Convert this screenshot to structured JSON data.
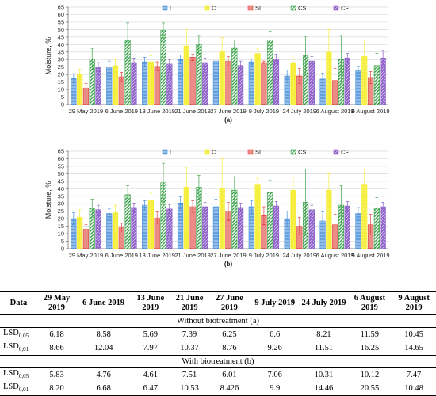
{
  "colors": {
    "L": "#4a90d9",
    "C": "#f5ee3a",
    "SL": "#e0453c",
    "CS": "#3aa24a",
    "CF": "#8a5ac8"
  },
  "chart_data": [
    {
      "type": "bar",
      "panel_label": "(a)",
      "ylabel": "Moisture, %",
      "ylim": [
        0,
        65
      ],
      "yticks": [
        0,
        5,
        10,
        15,
        20,
        25,
        30,
        35,
        40,
        45,
        50,
        55,
        60,
        65
      ],
      "grid": true,
      "legend_position": "top",
      "categories": [
        "29 May 2019",
        "6 June 2019",
        "13 June 2019",
        "21 June 2019",
        "27 June 2019",
        "9 July 2019",
        "24 July 2019",
        "6 August 2019",
        "9 August 2019"
      ],
      "series": [
        {
          "name": "L",
          "values": [
            17.5,
            25,
            28.5,
            30,
            29,
            28.5,
            19,
            17,
            22.5
          ],
          "errors": [
            3,
            4,
            3,
            3,
            4,
            2,
            4,
            4,
            3
          ]
        },
        {
          "name": "C",
          "values": [
            20.5,
            26,
            28.5,
            39,
            35.5,
            34,
            28,
            35,
            32
          ],
          "errors": [
            3,
            4,
            4,
            11,
            9,
            3,
            5,
            15,
            11
          ]
        },
        {
          "name": "SL",
          "values": [
            11,
            18.5,
            25.5,
            31.5,
            29,
            28,
            19,
            16,
            18
          ],
          "errors": [
            3,
            3,
            3,
            2,
            3,
            1,
            5,
            8,
            4
          ]
        },
        {
          "name": "CS",
          "values": [
            30.5,
            42.5,
            49.5,
            40,
            38,
            43,
            32.5,
            30,
            26
          ],
          "errors": [
            7,
            12,
            5,
            6,
            5,
            6,
            13,
            16,
            8
          ]
        },
        {
          "name": "CF",
          "values": [
            25,
            28,
            27,
            28,
            26,
            30.5,
            29,
            31,
            31
          ],
          "errors": [
            3,
            3,
            3,
            3,
            3,
            3,
            3,
            3,
            5
          ]
        }
      ]
    },
    {
      "type": "bar",
      "panel_label": "(b)",
      "ylabel": "Moisture, %",
      "ylim": [
        0,
        65
      ],
      "yticks": [
        0,
        5,
        10,
        15,
        20,
        25,
        30,
        35,
        40,
        45,
        50,
        55,
        60,
        65
      ],
      "grid": true,
      "legend_position": "top",
      "categories": [
        "29 May 2019",
        "6 June 2019",
        "13 June 2019",
        "21 June 2019",
        "27 June 2019",
        "9 July 2019",
        "24 July 2019",
        "6 August 2019",
        "9 August 2019"
      ],
      "series": [
        {
          "name": "L",
          "values": [
            20,
            23.5,
            29,
            30.5,
            28,
            28,
            20,
            18.5,
            23.5
          ],
          "errors": [
            4,
            3,
            3,
            4,
            5,
            4,
            5,
            6,
            4
          ]
        },
        {
          "name": "C",
          "values": [
            21,
            24,
            32,
            41,
            40,
            43,
            39,
            39,
            43
          ],
          "errors": [
            5,
            5,
            5,
            13,
            20,
            4,
            9,
            11,
            10
          ]
        },
        {
          "name": "SL",
          "values": [
            13,
            14,
            20.5,
            28,
            25,
            22,
            15,
            16,
            16
          ],
          "errors": [
            3,
            3,
            4,
            4,
            6,
            6,
            6,
            7,
            7
          ]
        },
        {
          "name": "CS",
          "values": [
            27,
            36,
            44,
            41,
            39,
            37.5,
            31,
            29,
            27
          ],
          "errors": [
            6,
            6,
            13,
            8,
            9,
            8,
            22,
            13,
            7
          ]
        },
        {
          "name": "CF",
          "values": [
            26,
            27.5,
            26.5,
            28,
            27.5,
            28.5,
            26,
            28.5,
            28
          ],
          "errors": [
            3,
            3,
            3,
            3,
            3,
            3,
            3,
            3,
            3
          ]
        }
      ]
    }
  ],
  "table": {
    "header": [
      "Data",
      "29 May 2019",
      "6 June 2019",
      "13 June 2019",
      "21 June 2019",
      "27 June 2019",
      "9 July 2019",
      "24 July 2019",
      "6 August 2019",
      "9 August 2019"
    ],
    "section_a_title": "Without biotreatment (a)",
    "section_b_title": "With biotreatment (b)",
    "rows_a": [
      {
        "label": "LSD0,05",
        "cells": [
          "6.18",
          "8.58",
          "5.69",
          "7.39",
          "6.25",
          "6.6",
          "8.21",
          "11.59",
          "10.45"
        ]
      },
      {
        "label": "LSD0,01",
        "cells": [
          "8.66",
          "12.04",
          "7.97",
          "10.37",
          "8.76",
          "9.26",
          "11.51",
          "16.25",
          "14.65"
        ]
      }
    ],
    "rows_b": [
      {
        "label": "LSD0,05",
        "cells": [
          "5.83",
          "4.76",
          "4.61",
          "7.51",
          "6.01",
          "7.06",
          "10.31",
          "10.12",
          "7.47"
        ]
      },
      {
        "label": "LSD0,01",
        "cells": [
          "8.20",
          "6.68",
          "6.47",
          "10.53",
          "8.426",
          "9.9",
          "14.46",
          "20.55",
          "10.48"
        ]
      }
    ]
  }
}
